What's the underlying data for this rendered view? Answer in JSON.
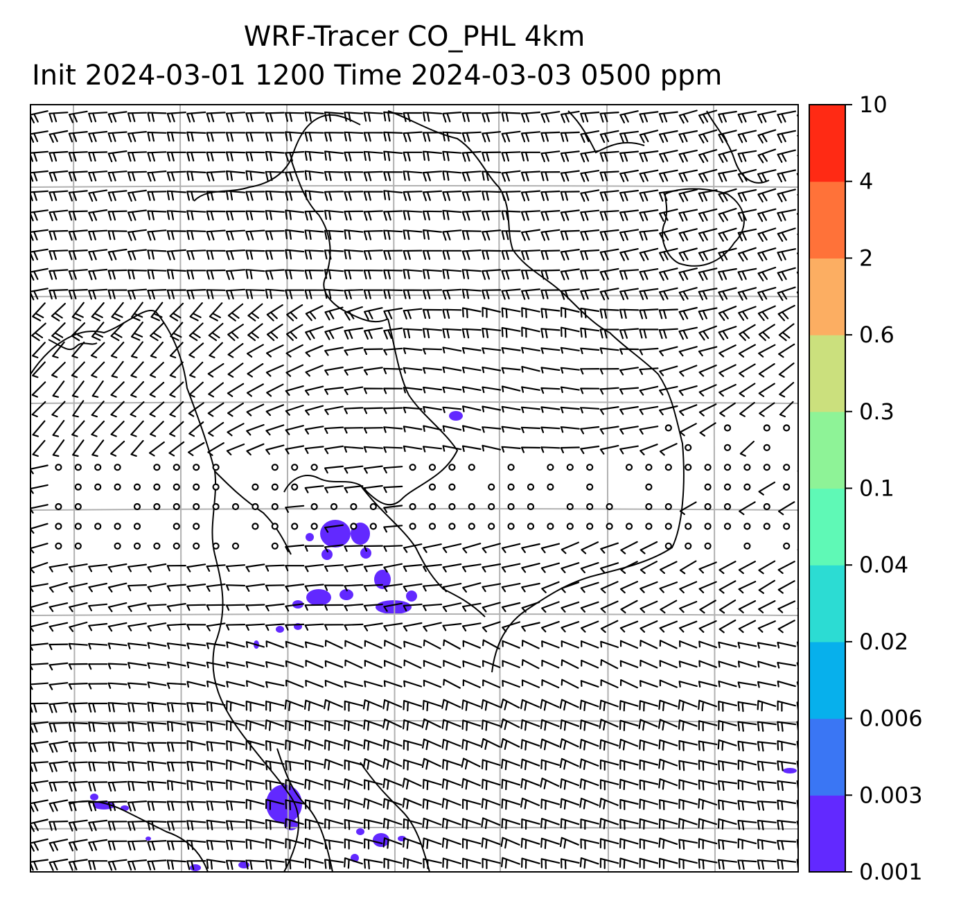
{
  "chart_data": {
    "type": "heatmap",
    "title_line_1": "WRF-Tracer CO_PHL 4km",
    "title_line_2": "Init 2024-03-01 1200 Time 2024-03-03 0500 ppm",
    "grid": true,
    "overlay": "wind barbs",
    "colorbar": {
      "placement": "right",
      "levels": [
        "0.001",
        "0.003",
        "0.006",
        "0.02",
        "0.04",
        "0.1",
        "0.3",
        "0.6",
        "2",
        "4",
        "10"
      ],
      "colors": [
        "#6229ff",
        "#3a76f4",
        "#07b0ec",
        "#2cdcd3",
        "#5ff9b6",
        "#8ef397",
        "#cbe07d",
        "#fcae62",
        "#ff7239",
        "#ff2a14"
      ]
    },
    "tracer_patches": [
      {
        "region": "central",
        "min_ppm": 0.001,
        "max_ppm": 0.003
      },
      {
        "region": "south-central",
        "min_ppm": 0.001,
        "max_ppm": 0.003
      },
      {
        "region": "southwest",
        "min_ppm": 0.001,
        "max_ppm": 0.003
      },
      {
        "region": "far-east edge",
        "min_ppm": 0.001,
        "max_ppm": 0.003
      }
    ]
  }
}
